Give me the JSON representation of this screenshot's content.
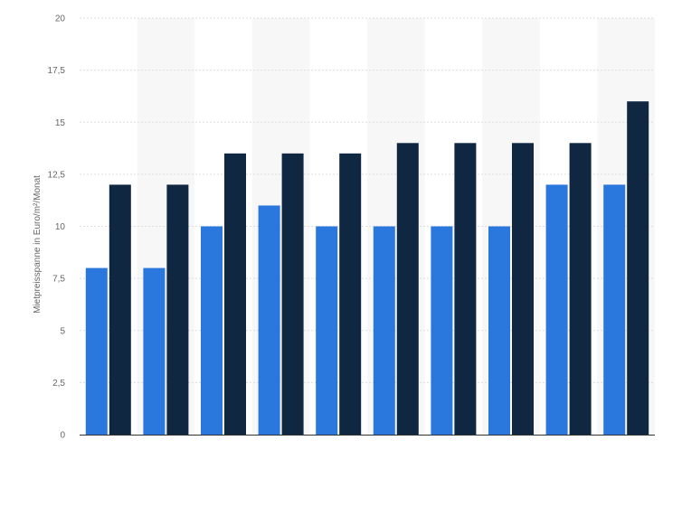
{
  "chart_data": {
    "type": "bar",
    "title": "",
    "xlabel": "",
    "ylabel": "Mietpreisspanne in Euro/m²/Monat",
    "ylim": [
      0,
      20
    ],
    "yticks": [
      {
        "value": 0,
        "label": "0"
      },
      {
        "value": 2.5,
        "label": "2,5"
      },
      {
        "value": 5,
        "label": "5"
      },
      {
        "value": 7.5,
        "label": "7,5"
      },
      {
        "value": 10,
        "label": "10"
      },
      {
        "value": 12.5,
        "label": "12,5"
      },
      {
        "value": 15,
        "label": "15"
      },
      {
        "value": 17.5,
        "label": "17,5"
      },
      {
        "value": 20,
        "label": "20"
      }
    ],
    "grid": true,
    "category_count": 10,
    "series": [
      {
        "color": "#2a77dd",
        "values": [
          8,
          8,
          10,
          11,
          10,
          10,
          10,
          10,
          12,
          12
        ]
      },
      {
        "color": "#0f2741",
        "values": [
          12,
          12,
          13.5,
          13.5,
          13.5,
          14,
          14,
          14,
          14,
          16
        ]
      }
    ],
    "band_color": "#f7f7f7",
    "grid_color": "#dddddd"
  }
}
